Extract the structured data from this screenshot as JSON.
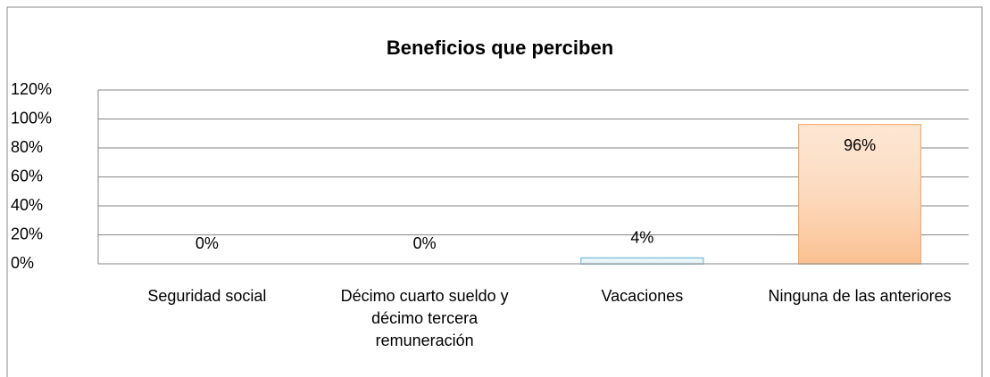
{
  "chart_data": {
    "type": "bar",
    "title": "Beneficios que perciben",
    "categories": [
      "Seguridad social",
      "Décimo cuarto sueldo y décimo tercera remuneración",
      "Vacaciones",
      "Ninguna de las anteriores"
    ],
    "values": [
      0,
      0,
      4,
      96
    ],
    "value_labels": [
      "0%",
      "0%",
      "4%",
      "96%"
    ],
    "colors": [
      "#dbeef4",
      "#fde9d9",
      "#dbeef4",
      "#fac090"
    ],
    "edge_colors": [
      "#4bacc6",
      "#f79646",
      "#4bacc6",
      "#f79646"
    ],
    "ylim": [
      0,
      120
    ],
    "yticks": [
      {
        "value": 0,
        "label": "0%"
      },
      {
        "value": 20,
        "label": "20%"
      },
      {
        "value": 40,
        "label": "40%"
      },
      {
        "value": 60,
        "label": "60%"
      },
      {
        "value": 80,
        "label": "80%"
      },
      {
        "value": 100,
        "label": "100%"
      },
      {
        "value": 120,
        "label": "120%"
      }
    ],
    "grid": true
  }
}
